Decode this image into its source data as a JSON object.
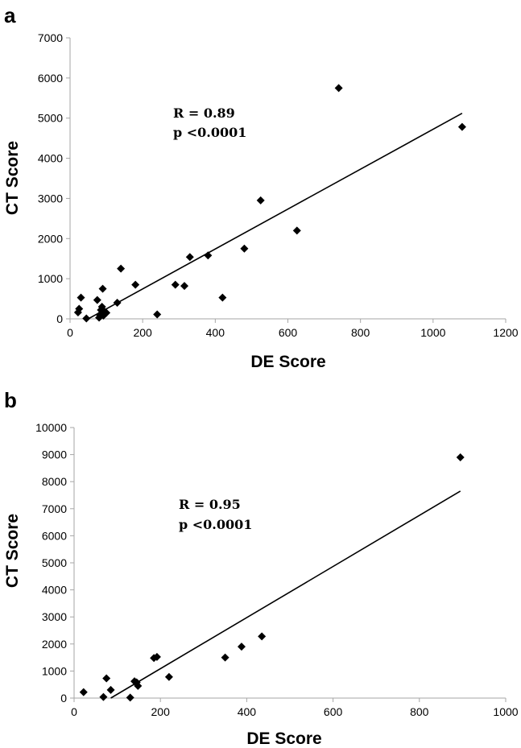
{
  "chart_data": [
    {
      "panel": "a",
      "type": "scatter",
      "xlabel": "DE Score",
      "ylabel": "CT Score",
      "xlim": [
        0,
        1200
      ],
      "ylim": [
        0,
        7000
      ],
      "xticks": [
        0,
        200,
        400,
        600,
        800,
        1000,
        1200
      ],
      "yticks": [
        0,
        1000,
        2000,
        3000,
        4000,
        5000,
        6000,
        7000
      ],
      "annotations": [
        "R = 0.89",
        "p <0.0001"
      ],
      "trendline": {
        "x": [
          50,
          1080
        ],
        "y": [
          0,
          5120
        ]
      },
      "points": [
        {
          "x": 22,
          "y": 160
        },
        {
          "x": 25,
          "y": 250
        },
        {
          "x": 30,
          "y": 530
        },
        {
          "x": 45,
          "y": 10
        },
        {
          "x": 75,
          "y": 470
        },
        {
          "x": 80,
          "y": 30
        },
        {
          "x": 82,
          "y": 100
        },
        {
          "x": 85,
          "y": 220
        },
        {
          "x": 88,
          "y": 300
        },
        {
          "x": 90,
          "y": 750
        },
        {
          "x": 92,
          "y": 80
        },
        {
          "x": 95,
          "y": 180
        },
        {
          "x": 100,
          "y": 150
        },
        {
          "x": 130,
          "y": 400
        },
        {
          "x": 140,
          "y": 1250
        },
        {
          "x": 180,
          "y": 850
        },
        {
          "x": 240,
          "y": 110
        },
        {
          "x": 290,
          "y": 850
        },
        {
          "x": 315,
          "y": 820
        },
        {
          "x": 330,
          "y": 1540
        },
        {
          "x": 380,
          "y": 1580
        },
        {
          "x": 420,
          "y": 530
        },
        {
          "x": 480,
          "y": 1750
        },
        {
          "x": 525,
          "y": 2950
        },
        {
          "x": 625,
          "y": 2200
        },
        {
          "x": 740,
          "y": 5750
        },
        {
          "x": 1080,
          "y": 4780
        }
      ]
    },
    {
      "panel": "b",
      "type": "scatter",
      "xlabel": "DE Score",
      "ylabel": "CT Score",
      "xlim": [
        0,
        1000
      ],
      "ylim": [
        0,
        10000
      ],
      "xticks": [
        0,
        200,
        400,
        600,
        800,
        1000
      ],
      "yticks": [
        0,
        1000,
        2000,
        3000,
        4000,
        5000,
        6000,
        7000,
        8000,
        9000,
        10000
      ],
      "annotations": [
        "R = 0.95",
        "p <0.0001"
      ],
      "trendline": {
        "x": [
          85,
          895
        ],
        "y": [
          0,
          7650
        ]
      },
      "points": [
        {
          "x": 22,
          "y": 220
        },
        {
          "x": 68,
          "y": 40
        },
        {
          "x": 75,
          "y": 730
        },
        {
          "x": 85,
          "y": 300
        },
        {
          "x": 130,
          "y": 20
        },
        {
          "x": 140,
          "y": 620
        },
        {
          "x": 145,
          "y": 580
        },
        {
          "x": 148,
          "y": 450
        },
        {
          "x": 185,
          "y": 1480
        },
        {
          "x": 192,
          "y": 1520
        },
        {
          "x": 220,
          "y": 780
        },
        {
          "x": 350,
          "y": 1500
        },
        {
          "x": 388,
          "y": 1900
        },
        {
          "x": 435,
          "y": 2280
        },
        {
          "x": 895,
          "y": 8900
        }
      ]
    }
  ]
}
